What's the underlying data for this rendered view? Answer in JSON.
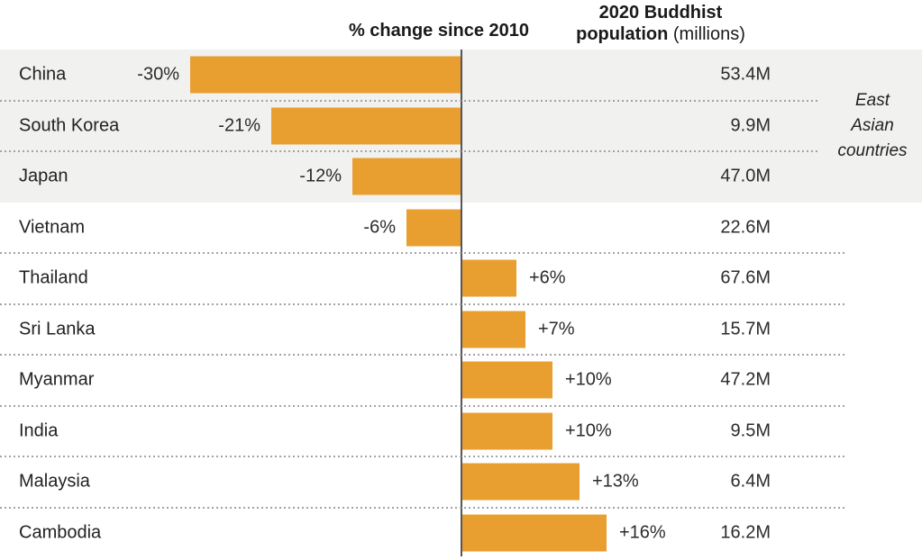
{
  "header": {
    "change_label": "% change since 2010",
    "population_label_line1": "2020 Buddhist",
    "population_label_line2_bold": "population",
    "population_label_line2_regular": " (millions)"
  },
  "annotation": {
    "lines": [
      "East",
      "Asian",
      "countries"
    ]
  },
  "colors": {
    "bar": "#E99E30",
    "highlight_band": "#F1F1EF",
    "axis_line": "#55565A"
  },
  "chart_data": {
    "type": "bar",
    "orientation": "horizontal",
    "title": "",
    "xlabel": "% change since 2010",
    "ylabel": "",
    "x_axis": {
      "zero_line_shown": true,
      "unit": "%",
      "approx_range": [
        -30,
        16
      ]
    },
    "grid": "dotted-row-separators",
    "legend": "none",
    "categories": [
      "China",
      "South Korea",
      "Japan",
      "Vietnam",
      "Thailand",
      "Sri Lanka",
      "Myanmar",
      "India",
      "Malaysia",
      "Cambodia"
    ],
    "series": [
      {
        "name": "% change since 2010",
        "values": [
          -30,
          -21,
          -12,
          -6,
          6,
          7,
          10,
          10,
          13,
          16
        ]
      },
      {
        "name": "2020 Buddhist population (millions)",
        "values": [
          53.4,
          9.9,
          47.0,
          22.6,
          67.6,
          15.7,
          47.2,
          9.5,
          6.4,
          16.2
        ]
      }
    ],
    "rows": [
      {
        "country": "China",
        "pct_change": -30,
        "pct_label": "-30%",
        "population_label": "53.4M",
        "east_asian": true
      },
      {
        "country": "South Korea",
        "pct_change": -21,
        "pct_label": "-21%",
        "population_label": "9.9M",
        "east_asian": true
      },
      {
        "country": "Japan",
        "pct_change": -12,
        "pct_label": "-12%",
        "population_label": "47.0M",
        "east_asian": true
      },
      {
        "country": "Vietnam",
        "pct_change": -6,
        "pct_label": "-6%",
        "population_label": "22.6M",
        "east_asian": false
      },
      {
        "country": "Thailand",
        "pct_change": 6,
        "pct_label": "+6%",
        "population_label": "67.6M",
        "east_asian": false
      },
      {
        "country": "Sri Lanka",
        "pct_change": 7,
        "pct_label": "+7%",
        "population_label": "15.7M",
        "east_asian": false
      },
      {
        "country": "Myanmar",
        "pct_change": 10,
        "pct_label": "+10%",
        "population_label": "47.2M",
        "east_asian": false
      },
      {
        "country": "India",
        "pct_change": 10,
        "pct_label": "+10%",
        "population_label": "9.5M",
        "east_asian": false
      },
      {
        "country": "Malaysia",
        "pct_change": 13,
        "pct_label": "+13%",
        "population_label": "6.4M",
        "east_asian": false
      },
      {
        "country": "Cambodia",
        "pct_change": 16,
        "pct_label": "+16%",
        "population_label": "16.2M",
        "east_asian": false
      }
    ]
  }
}
